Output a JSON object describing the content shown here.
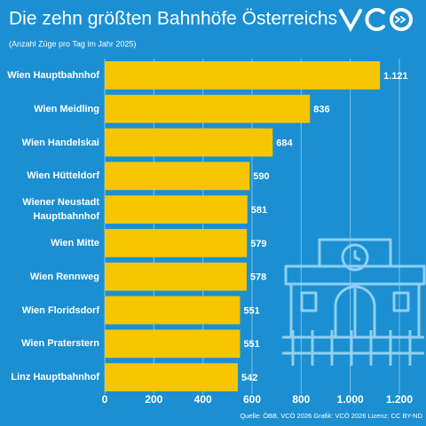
{
  "chart_data": {
    "type": "barh",
    "title": "Die zehn größten Bahnhöfe Österreichs",
    "subtitle": "(Anzahl Züge pro Tag im Jahr 2025)",
    "source": "Quelle: ÖBB, VCÖ 2026 Grafik: VCÖ 2026 Lizenz: CC BY-ND",
    "categories": [
      "Wien Hauptbahnhof",
      "Wien Meidling",
      "Wien Handelskai",
      "Wien Hütteldorf",
      "Wiener Neustadt Hauptbahnhof",
      "Wien Mitte",
      "Wien Rennweg",
      "Wien Floridsdorf",
      "Wien Praterstern",
      "Linz Hauptbahnhof"
    ],
    "values": [
      1121,
      836,
      684,
      590,
      581,
      579,
      578,
      551,
      551,
      542
    ],
    "value_labels": [
      "1.121",
      "836",
      "684",
      "590",
      "581",
      "579",
      "578",
      "551",
      "551",
      "542"
    ],
    "color": "#f7c600",
    "xlim": [
      0,
      1200
    ],
    "xticks": [
      0,
      200,
      400,
      600,
      800,
      {
        "value": 1000,
        "label": "1.000"
      },
      {
        "value": 1200,
        "label": "1.200"
      }
    ],
    "grid": true
  }
}
